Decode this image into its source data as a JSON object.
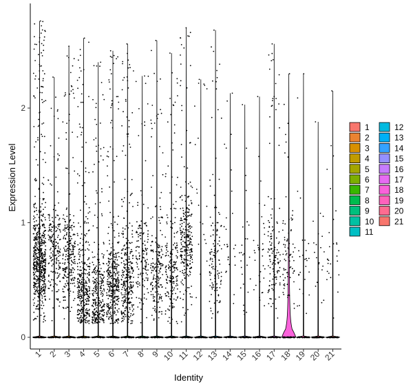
{
  "chart_data": {
    "type": "violin",
    "title": "",
    "xlabel": "Identity",
    "ylabel": "Expression Level",
    "ylim": [
      0,
      2.8
    ],
    "y_ticks": [
      0,
      1,
      2
    ],
    "categories": [
      "1",
      "2",
      "3",
      "4",
      "5",
      "6",
      "7",
      "8",
      "9",
      "10",
      "11",
      "12",
      "13",
      "14",
      "15",
      "16",
      "17",
      "18",
      "19",
      "20",
      "21"
    ],
    "colors": [
      "#F8766D",
      "#EA8331",
      "#D89000",
      "#C09B00",
      "#A3A500",
      "#7CAE00",
      "#39B600",
      "#00BB4E",
      "#00BF7D",
      "#00C1A3",
      "#00BFC4",
      "#00BAE0",
      "#00B0F6",
      "#35A2FF",
      "#9590FF",
      "#C77CFF",
      "#E76BF3",
      "#FA62DB",
      "#FF62BC",
      "#FF6C91",
      "#F8766D"
    ],
    "max_values": [
      2.76,
      2.27,
      2.54,
      2.61,
      2.4,
      2.5,
      2.56,
      2.28,
      2.59,
      2.48,
      2.7,
      2.25,
      2.68,
      2.13,
      2.03,
      2.1,
      2.56,
      2.3,
      2.3,
      1.88,
      2.15
    ],
    "expressing_density": [
      1.0,
      0.3,
      0.4,
      0.55,
      0.45,
      0.55,
      0.5,
      0.22,
      0.3,
      0.3,
      0.4,
      0.03,
      0.2,
      0.04,
      0.04,
      0.05,
      0.2,
      0.12,
      0.04,
      0.03,
      0.04
    ],
    "expression_center": [
      0.65,
      0.75,
      0.7,
      0.4,
      0.35,
      0.45,
      0.45,
      0.65,
      0.55,
      0.55,
      0.8,
      1.0,
      0.6,
      0.7,
      0.6,
      0.75,
      0.7,
      0.7,
      0.6,
      0.7,
      0.7
    ],
    "notable_violin": {
      "category": "18",
      "peak_width": 0.45,
      "upper_tail": 0.9
    },
    "legend": {
      "position": "right",
      "columns": [
        [
          "1",
          "2",
          "3",
          "4",
          "5",
          "6",
          "7",
          "8",
          "9",
          "10",
          "11"
        ],
        [
          "12",
          "13",
          "14",
          "15",
          "16",
          "17",
          "18",
          "19",
          "20",
          "21"
        ]
      ]
    },
    "grid": false
  }
}
